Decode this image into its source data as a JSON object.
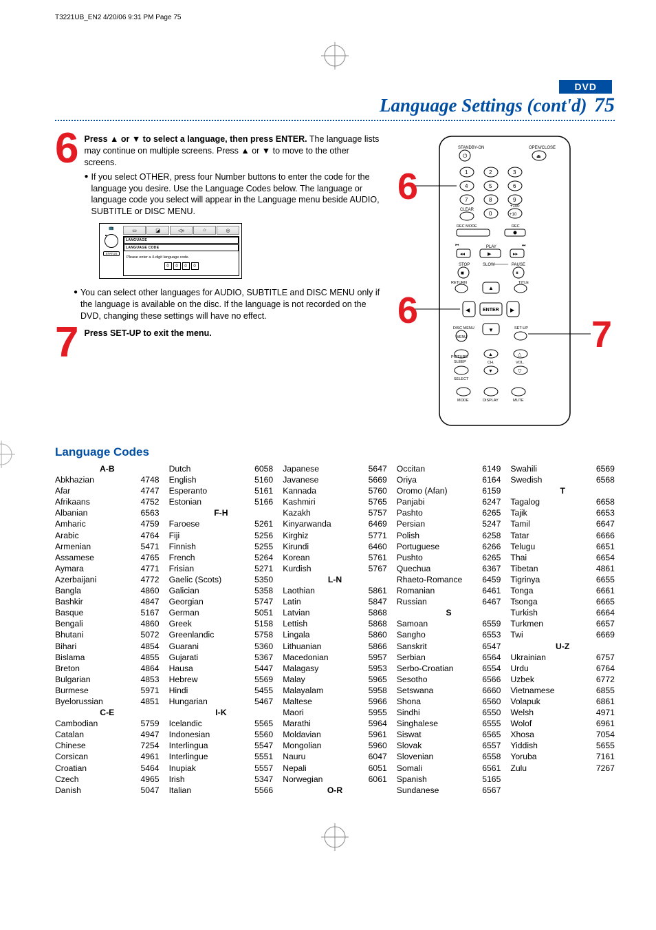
{
  "header": {
    "jobline": "T3221UB_EN2  4/20/06  9:31 PM  Page 75"
  },
  "badge": "DVD",
  "title": {
    "text": "Language Settings (cont'd)",
    "page": "75"
  },
  "steps": {
    "six": {
      "num": "6",
      "lead_bold": "Press ▲ or ▼ to select a language, then press ENTER.",
      "lead_rest": "  The language lists may continue on multiple screens.  Press ▲ or ▼ to move to the other screens.",
      "bullet1": "If you select OTHER, press four Number buttons to enter the code for the language you desire.  Use the Language Codes below.  The language or language code you select will appear in the Language menu beside AUDIO, SUBTITLE or DISC MENU.",
      "bullet2": "You can select other languages for AUDIO, SUBTITLE and DISC MENU only if the language is available on the disc.  If the language is not recorded on the DVD, changing these settings will have no effect."
    },
    "seven": {
      "num": "7",
      "text": "Press SET-UP to exit the menu."
    }
  },
  "langbox": {
    "status": "STATUS",
    "banner1": "LANGUAGE",
    "banner2": "LANGUAGE CODE",
    "prompt": "Please enter a 4-digit language code.",
    "digits": [
      "0",
      "0",
      "0",
      "0"
    ]
  },
  "remote": {
    "callouts": {
      "topnum": "6",
      "midnum": "6",
      "rightnum": "7"
    },
    "labels": {
      "standby": "STANDBY-ON",
      "openclose": "OPEN/CLOSE",
      "clear": "CLEAR",
      "plus100": "+100",
      "plus10": "+10",
      "recmode": "REC MODE",
      "rec": "REC",
      "play": "PLAY",
      "stop": "STOP",
      "slow": "SLOW",
      "pause": "PAUSE",
      "return": "RETURN",
      "title": "TITLE",
      "enter": "ENTER",
      "disc": "DISC MENU",
      "setup": "SET-UP",
      "picture": "PICTURE",
      "sleep": "SLEEP",
      "ch": "CH.",
      "vol": "VOL.",
      "select": "SELECT",
      "mode": "MODE",
      "display": "DISPLAY",
      "mute": "MUTE"
    }
  },
  "codesHeading": "Language Codes",
  "sections": [
    {
      "letter": "A-B",
      "items": [
        [
          "Abkhazian",
          "4748"
        ],
        [
          "Afar",
          "4747"
        ],
        [
          "Afrikaans",
          "4752"
        ],
        [
          "Albanian",
          "6563"
        ],
        [
          "Amharic",
          "4759"
        ],
        [
          "Arabic",
          "4764"
        ],
        [
          "Armenian",
          "5471"
        ],
        [
          "Assamese",
          "4765"
        ],
        [
          "Aymara",
          "4771"
        ],
        [
          "Azerbaijani",
          "4772"
        ],
        [
          "Bangla",
          "4860"
        ],
        [
          "Bashkir",
          "4847"
        ],
        [
          "Basque",
          "5167"
        ],
        [
          "Bengali",
          "4860"
        ],
        [
          "Bhutani",
          "5072"
        ],
        [
          "Bihari",
          "4854"
        ],
        [
          "Bislama",
          "4855"
        ],
        [
          "Breton",
          "4864"
        ],
        [
          "Bulgarian",
          "4853"
        ],
        [
          "Burmese",
          "5971"
        ],
        [
          "Byelorussian",
          "4851"
        ]
      ]
    },
    {
      "letter": "C-E",
      "items": [
        [
          "Cambodian",
          "5759"
        ],
        [
          "Catalan",
          "4947"
        ],
        [
          "Chinese",
          "7254"
        ],
        [
          "Corsican",
          "4961"
        ],
        [
          "Croatian",
          "5464"
        ],
        [
          "Czech",
          "4965"
        ],
        [
          "Danish",
          "5047"
        ],
        [
          "Dutch",
          "6058"
        ],
        [
          "English",
          "5160"
        ],
        [
          "Esperanto",
          "5161"
        ],
        [
          "Estonian",
          "5166"
        ]
      ]
    },
    {
      "letter": "F-H",
      "items": [
        [
          "Faroese",
          "5261"
        ],
        [
          "Fiji",
          "5256"
        ],
        [
          "Finnish",
          "5255"
        ],
        [
          "French",
          "5264"
        ],
        [
          "Frisian",
          "5271"
        ],
        [
          "Gaelic (Scots)",
          "5350"
        ],
        [
          "Galician",
          "5358"
        ],
        [
          "Georgian",
          "5747"
        ],
        [
          "German",
          "5051"
        ],
        [
          "Greek",
          "5158"
        ],
        [
          "Greenlandic",
          "5758"
        ],
        [
          "Guarani",
          "5360"
        ],
        [
          "Gujarati",
          "5367"
        ],
        [
          "Hausa",
          "5447"
        ],
        [
          "Hebrew",
          "5569"
        ],
        [
          "Hindi",
          "5455"
        ],
        [
          "Hungarian",
          "5467"
        ]
      ]
    },
    {
      "letter": "I-K",
      "items": [
        [
          "Icelandic",
          "5565"
        ],
        [
          "Indonesian",
          "5560"
        ],
        [
          "Interlingua",
          "5547"
        ],
        [
          "Interlingue",
          "5551"
        ],
        [
          "Inupiak",
          "5557"
        ],
        [
          "Irish",
          "5347"
        ],
        [
          "Italian",
          "5566"
        ],
        [
          "Japanese",
          "5647"
        ],
        [
          "Javanese",
          "5669"
        ],
        [
          "Kannada",
          "5760"
        ],
        [
          "Kashmiri",
          "5765"
        ],
        [
          "Kazakh",
          "5757"
        ],
        [
          "Kinyarwanda",
          "6469"
        ],
        [
          "Kirghiz",
          "5771"
        ],
        [
          "Kirundi",
          "6460"
        ],
        [
          "Korean",
          "5761"
        ],
        [
          "Kurdish",
          "5767"
        ]
      ]
    },
    {
      "letter": "L-N",
      "items": [
        [
          "Laothian",
          "5861"
        ],
        [
          "Latin",
          "5847"
        ],
        [
          "Latvian",
          "5868"
        ],
        [
          "Lettish",
          "5868"
        ],
        [
          "Lingala",
          "5860"
        ],
        [
          "Lithuanian",
          "5866"
        ],
        [
          "Macedonian",
          "5957"
        ],
        [
          "Malagasy",
          "5953"
        ],
        [
          "Malay",
          "5965"
        ],
        [
          "Malayalam",
          "5958"
        ],
        [
          "Maltese",
          "5966"
        ],
        [
          "Maori",
          "5955"
        ],
        [
          "Marathi",
          "5964"
        ],
        [
          "Moldavian",
          "5961"
        ],
        [
          "Mongolian",
          "5960"
        ],
        [
          "Nauru",
          "6047"
        ],
        [
          "Nepali",
          "6051"
        ],
        [
          "Norwegian",
          "6061"
        ]
      ]
    },
    {
      "letter": "O-R",
      "items": [
        [
          "Occitan",
          "6149"
        ],
        [
          "Oriya",
          "6164"
        ],
        [
          "Oromo (Afan)",
          "6159"
        ],
        [
          "Panjabi",
          "6247"
        ],
        [
          "Pashto",
          "6265"
        ],
        [
          "Persian",
          "5247"
        ],
        [
          "Polish",
          "6258"
        ],
        [
          "Portuguese",
          "6266"
        ],
        [
          "Pushto",
          "6265"
        ],
        [
          "Quechua",
          "6367"
        ],
        [
          "Rhaeto-Romance",
          "6459"
        ],
        [
          "Romanian",
          "6461"
        ],
        [
          "Russian",
          "6467"
        ]
      ]
    },
    {
      "letter": "S",
      "items": [
        [
          "Samoan",
          "6559"
        ],
        [
          "Sangho",
          "6553"
        ],
        [
          "Sanskrit",
          "6547"
        ],
        [
          "Serbian",
          "6564"
        ],
        [
          "Serbo-Croatian",
          "6554"
        ],
        [
          "Sesotho",
          "6566"
        ],
        [
          "Setswana",
          "6660"
        ],
        [
          "Shona",
          "6560"
        ],
        [
          "Sindhi",
          "6550"
        ],
        [
          "Singhalese",
          "6555"
        ],
        [
          "Siswat",
          "6565"
        ],
        [
          "Slovak",
          "6557"
        ],
        [
          "Slovenian",
          "6558"
        ],
        [
          "Somali",
          "6561"
        ],
        [
          "Spanish",
          "5165"
        ],
        [
          "Sundanese",
          "6567"
        ],
        [
          "Swahili",
          "6569"
        ],
        [
          "Swedish",
          "6568"
        ]
      ]
    },
    {
      "letter": "T",
      "items": [
        [
          "Tagalog",
          "6658"
        ],
        [
          "Tajik",
          "6653"
        ],
        [
          "Tamil",
          "6647"
        ],
        [
          "Tatar",
          "6666"
        ],
        [
          "Telugu",
          "6651"
        ],
        [
          "Thai",
          "6654"
        ],
        [
          "Tibetan",
          "4861"
        ],
        [
          "Tigrinya",
          "6655"
        ],
        [
          "Tonga",
          "6661"
        ],
        [
          "Tsonga",
          "6665"
        ],
        [
          "Turkish",
          "6664"
        ],
        [
          "Turkmen",
          "6657"
        ],
        [
          "Twi",
          "6669"
        ]
      ]
    },
    {
      "letter": "U-Z",
      "items": [
        [
          "Ukrainian",
          "6757"
        ],
        [
          "Urdu",
          "6764"
        ],
        [
          "Uzbek",
          "6772"
        ],
        [
          "Vietnamese",
          "6855"
        ],
        [
          "Volapuk",
          "6861"
        ],
        [
          "Welsh",
          "4971"
        ],
        [
          "Wolof",
          "6961"
        ],
        [
          "Xhosa",
          "7054"
        ],
        [
          "Yiddish",
          "5655"
        ],
        [
          "Yoruba",
          "7161"
        ],
        [
          "Zulu",
          "7267"
        ]
      ]
    }
  ],
  "colors": {
    "brand": "#004ea2",
    "accent": "#e31b23",
    "text": "#000000",
    "bg": "#ffffff"
  }
}
